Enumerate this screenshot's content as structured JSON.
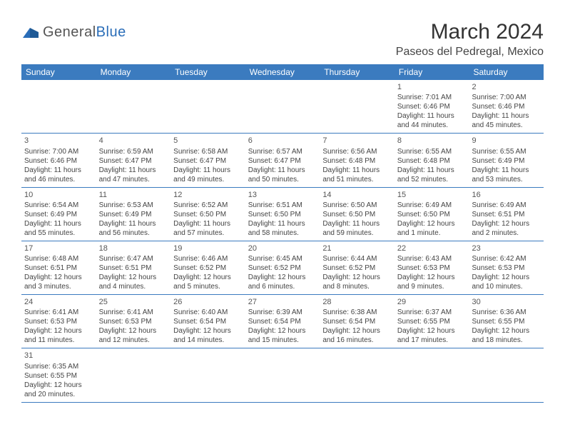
{
  "logo": {
    "general": "General",
    "blue": "Blue"
  },
  "title": "March 2024",
  "location": "Paseos del Pedregal, Mexico",
  "colors": {
    "header_bg": "#3b7bbf",
    "header_text": "#ffffff",
    "row_border": "#3b7bbf",
    "body_text": "#333333",
    "logo_gray": "#555555",
    "logo_blue": "#2a6db8"
  },
  "day_headers": [
    "Sunday",
    "Monday",
    "Tuesday",
    "Wednesday",
    "Thursday",
    "Friday",
    "Saturday"
  ],
  "weeks": [
    [
      null,
      null,
      null,
      null,
      null,
      {
        "n": "1",
        "sr": "7:01 AM",
        "ss": "6:46 PM",
        "dl": "11 hours and 44 minutes."
      },
      {
        "n": "2",
        "sr": "7:00 AM",
        "ss": "6:46 PM",
        "dl": "11 hours and 45 minutes."
      }
    ],
    [
      {
        "n": "3",
        "sr": "7:00 AM",
        "ss": "6:46 PM",
        "dl": "11 hours and 46 minutes."
      },
      {
        "n": "4",
        "sr": "6:59 AM",
        "ss": "6:47 PM",
        "dl": "11 hours and 47 minutes."
      },
      {
        "n": "5",
        "sr": "6:58 AM",
        "ss": "6:47 PM",
        "dl": "11 hours and 49 minutes."
      },
      {
        "n": "6",
        "sr": "6:57 AM",
        "ss": "6:47 PM",
        "dl": "11 hours and 50 minutes."
      },
      {
        "n": "7",
        "sr": "6:56 AM",
        "ss": "6:48 PM",
        "dl": "11 hours and 51 minutes."
      },
      {
        "n": "8",
        "sr": "6:55 AM",
        "ss": "6:48 PM",
        "dl": "11 hours and 52 minutes."
      },
      {
        "n": "9",
        "sr": "6:55 AM",
        "ss": "6:49 PM",
        "dl": "11 hours and 53 minutes."
      }
    ],
    [
      {
        "n": "10",
        "sr": "6:54 AM",
        "ss": "6:49 PM",
        "dl": "11 hours and 55 minutes."
      },
      {
        "n": "11",
        "sr": "6:53 AM",
        "ss": "6:49 PM",
        "dl": "11 hours and 56 minutes."
      },
      {
        "n": "12",
        "sr": "6:52 AM",
        "ss": "6:50 PM",
        "dl": "11 hours and 57 minutes."
      },
      {
        "n": "13",
        "sr": "6:51 AM",
        "ss": "6:50 PM",
        "dl": "11 hours and 58 minutes."
      },
      {
        "n": "14",
        "sr": "6:50 AM",
        "ss": "6:50 PM",
        "dl": "11 hours and 59 minutes."
      },
      {
        "n": "15",
        "sr": "6:49 AM",
        "ss": "6:50 PM",
        "dl": "12 hours and 1 minute."
      },
      {
        "n": "16",
        "sr": "6:49 AM",
        "ss": "6:51 PM",
        "dl": "12 hours and 2 minutes."
      }
    ],
    [
      {
        "n": "17",
        "sr": "6:48 AM",
        "ss": "6:51 PM",
        "dl": "12 hours and 3 minutes."
      },
      {
        "n": "18",
        "sr": "6:47 AM",
        "ss": "6:51 PM",
        "dl": "12 hours and 4 minutes."
      },
      {
        "n": "19",
        "sr": "6:46 AM",
        "ss": "6:52 PM",
        "dl": "12 hours and 5 minutes."
      },
      {
        "n": "20",
        "sr": "6:45 AM",
        "ss": "6:52 PM",
        "dl": "12 hours and 6 minutes."
      },
      {
        "n": "21",
        "sr": "6:44 AM",
        "ss": "6:52 PM",
        "dl": "12 hours and 8 minutes."
      },
      {
        "n": "22",
        "sr": "6:43 AM",
        "ss": "6:53 PM",
        "dl": "12 hours and 9 minutes."
      },
      {
        "n": "23",
        "sr": "6:42 AM",
        "ss": "6:53 PM",
        "dl": "12 hours and 10 minutes."
      }
    ],
    [
      {
        "n": "24",
        "sr": "6:41 AM",
        "ss": "6:53 PM",
        "dl": "12 hours and 11 minutes."
      },
      {
        "n": "25",
        "sr": "6:41 AM",
        "ss": "6:53 PM",
        "dl": "12 hours and 12 minutes."
      },
      {
        "n": "26",
        "sr": "6:40 AM",
        "ss": "6:54 PM",
        "dl": "12 hours and 14 minutes."
      },
      {
        "n": "27",
        "sr": "6:39 AM",
        "ss": "6:54 PM",
        "dl": "12 hours and 15 minutes."
      },
      {
        "n": "28",
        "sr": "6:38 AM",
        "ss": "6:54 PM",
        "dl": "12 hours and 16 minutes."
      },
      {
        "n": "29",
        "sr": "6:37 AM",
        "ss": "6:55 PM",
        "dl": "12 hours and 17 minutes."
      },
      {
        "n": "30",
        "sr": "6:36 AM",
        "ss": "6:55 PM",
        "dl": "12 hours and 18 minutes."
      }
    ],
    [
      {
        "n": "31",
        "sr": "6:35 AM",
        "ss": "6:55 PM",
        "dl": "12 hours and 20 minutes."
      },
      null,
      null,
      null,
      null,
      null,
      null
    ]
  ],
  "labels": {
    "sunrise": "Sunrise: ",
    "sunset": "Sunset: ",
    "daylight": "Daylight: "
  }
}
